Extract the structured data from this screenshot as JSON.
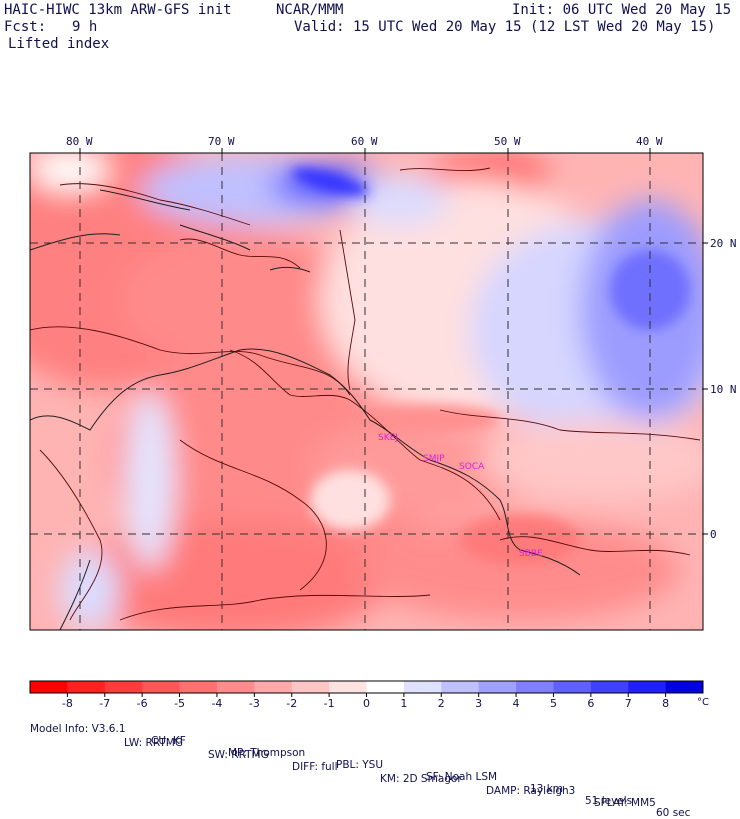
{
  "header": {
    "model": "HAIC-HIWC 13km ARW-GFS init",
    "org": "NCAR/MMM",
    "fcst_label": "Fcst:",
    "fcst_value": "9 h",
    "field": "Lifted index",
    "init": "Init: 06 UTC Wed 20 May 15",
    "valid": "Valid: 15 UTC Wed 20 May 15 (12 LST Wed 20 May 15)"
  },
  "map": {
    "lon_labels": [
      "80 W",
      "70 W",
      "60 W",
      "50 W",
      "40 W"
    ],
    "lat_labels": [
      "20 N",
      "10 N",
      "0"
    ],
    "stations": [
      "SKEJ",
      "SMJP",
      "SOCA",
      "SBBE"
    ],
    "station_color": "#e020e0"
  },
  "colorbar": {
    "ticks": [
      "-8",
      "-7",
      "-6",
      "-5",
      "-4",
      "-3",
      "-2",
      "-1",
      "0",
      "1",
      "2",
      "3",
      "4",
      "5",
      "6",
      "7",
      "8"
    ],
    "unit": "°C",
    "colors": [
      "#ff0000",
      "#ff2020",
      "#ff3c3c",
      "#ff5656",
      "#ff7070",
      "#ff8c8c",
      "#ffa8a8",
      "#ffc4c4",
      "#ffe2e2",
      "#ffffff",
      "#e0e0ff",
      "#c0c0ff",
      "#a0a0ff",
      "#8080ff",
      "#6060ff",
      "#4040ff",
      "#2020ff",
      "#0000e0"
    ]
  },
  "footer": {
    "line1": [
      "Model Info: V3.6.1",
      "CU: KF",
      "MP: Thompson",
      "PBL: YSU",
      "SF: Noah LSM",
      "13 km",
      "51 levels",
      "60 sec"
    ],
    "line2": [
      "LW: RRTMG",
      "SW: RRTMG",
      "DIFF: full",
      "KM: 2D Smagor",
      "DAMP: Rayleigh3",
      "SFLAY: MM5"
    ]
  }
}
